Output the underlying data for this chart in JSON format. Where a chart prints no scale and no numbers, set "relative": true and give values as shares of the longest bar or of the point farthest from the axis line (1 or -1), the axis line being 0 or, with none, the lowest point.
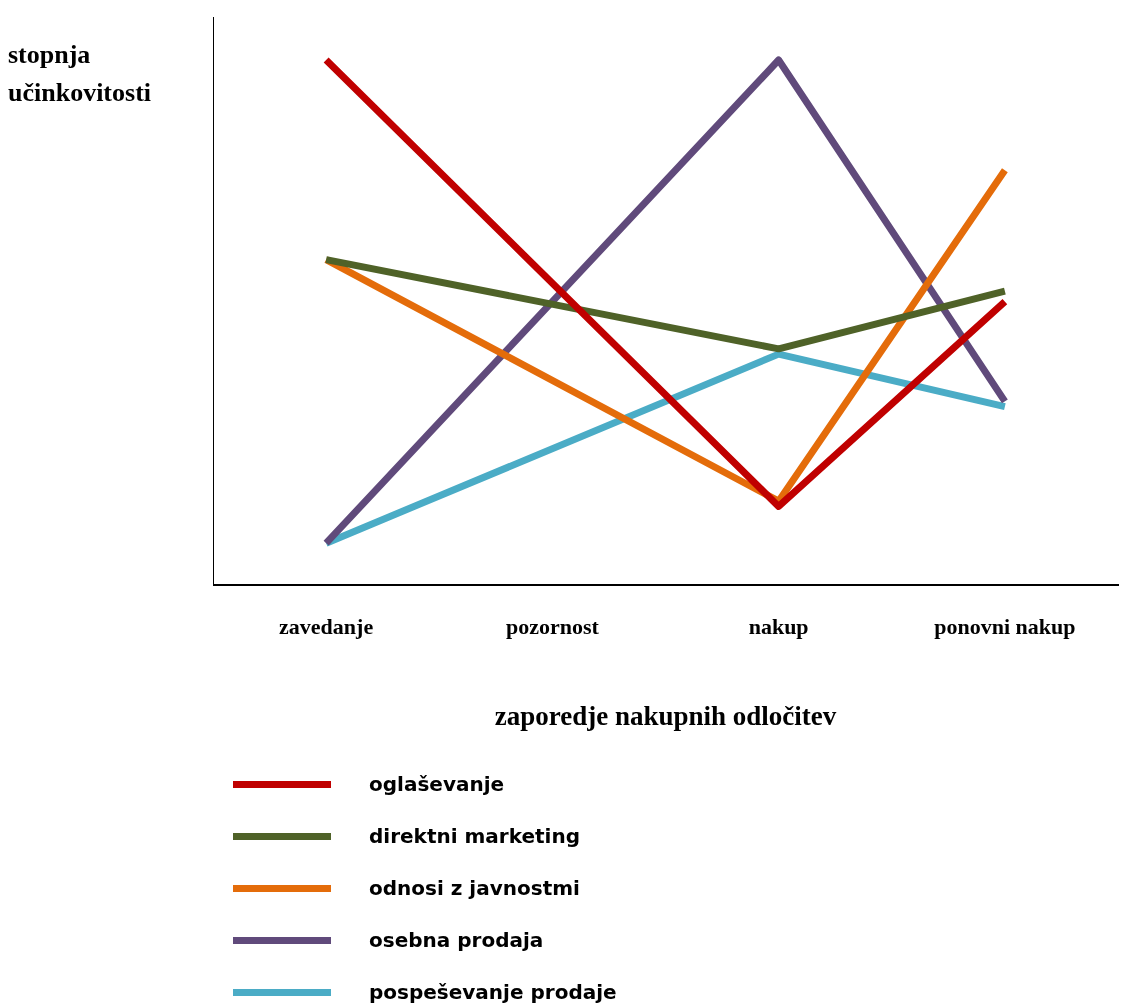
{
  "chart_data": {
    "type": "line",
    "relative": true,
    "xlabel": "zaporedje nakupnih odločitev",
    "ylabel": "stopnja učinkovitosti",
    "categories": [
      "zavedanje",
      "pozornost",
      "nakup",
      "ponovni nakup"
    ],
    "legend": "bottom",
    "grid": false,
    "marker": "none",
    "line_style": "solid",
    "series": [
      {
        "name": "oglaševanje",
        "color": "#c00000",
        "values": [
          1.0,
          null,
          0.15,
          0.54
        ]
      },
      {
        "name": "direktni marketing",
        "color": "#4f6228",
        "values": [
          0.62,
          null,
          0.45,
          0.56
        ]
      },
      {
        "name": "odnosi z javnostmi",
        "color": "#e46c0a",
        "values": [
          0.62,
          null,
          0.16,
          0.79
        ]
      },
      {
        "name": "osebna prodaja",
        "color": "#604a7b",
        "values": [
          0.08,
          null,
          1.0,
          0.35
        ]
      },
      {
        "name": "pospeševanje prodaje",
        "color": "#4bacc6",
        "values": [
          0.08,
          null,
          0.44,
          0.34
        ]
      }
    ]
  }
}
